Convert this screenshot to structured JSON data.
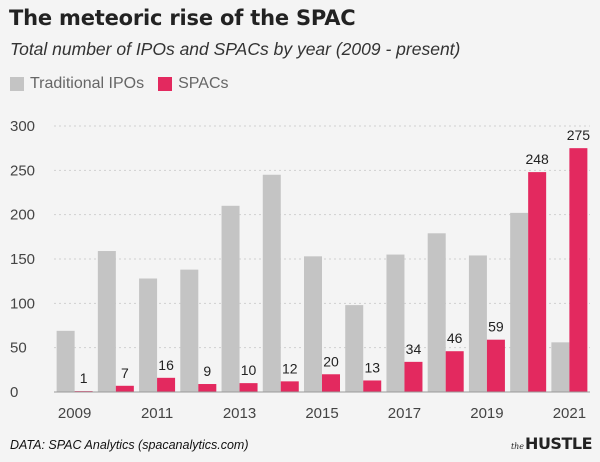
{
  "title": "The meteoric rise of the SPAC",
  "subtitle": "Total number of IPOs and SPACs by year (2009 - present)",
  "source": "DATA: SPAC Analytics (spacanalytics.com)",
  "brand": {
    "prefix": "the",
    "name": "HUSTLE"
  },
  "chart_data": {
    "type": "bar",
    "title": "The meteoric rise of the SPAC",
    "subtitle": "Total number of IPOs and SPACs by year (2009 - present)",
    "xlabel": "",
    "ylabel": "",
    "ylim": [
      0,
      300
    ],
    "yticks": [
      0,
      50,
      100,
      150,
      200,
      250,
      300
    ],
    "categories": [
      "2009",
      "2010",
      "2011",
      "2012",
      "2013",
      "2014",
      "2015",
      "2016",
      "2017",
      "2018",
      "2019",
      "2020",
      "2021"
    ],
    "xtick_labels": [
      "2009",
      "",
      "2011",
      "",
      "2013",
      "",
      "2015",
      "",
      "2017",
      "",
      "2019",
      "",
      "2021"
    ],
    "series": [
      {
        "name": "Traditional IPOs",
        "color": "#c4c4c4",
        "values": [
          69,
          159,
          128,
          138,
          210,
          245,
          153,
          98,
          155,
          179,
          154,
          202,
          56
        ]
      },
      {
        "name": "SPACs",
        "color": "#e3295f",
        "values": [
          1,
          7,
          16,
          9,
          10,
          12,
          20,
          13,
          34,
          46,
          59,
          248,
          275
        ]
      }
    ],
    "data_labels": [
      "1",
      "7",
      "16",
      "9",
      "10",
      "12",
      "20",
      "13",
      "34",
      "46",
      "59",
      "248",
      "275"
    ],
    "grid": true,
    "legend": "top-left"
  }
}
